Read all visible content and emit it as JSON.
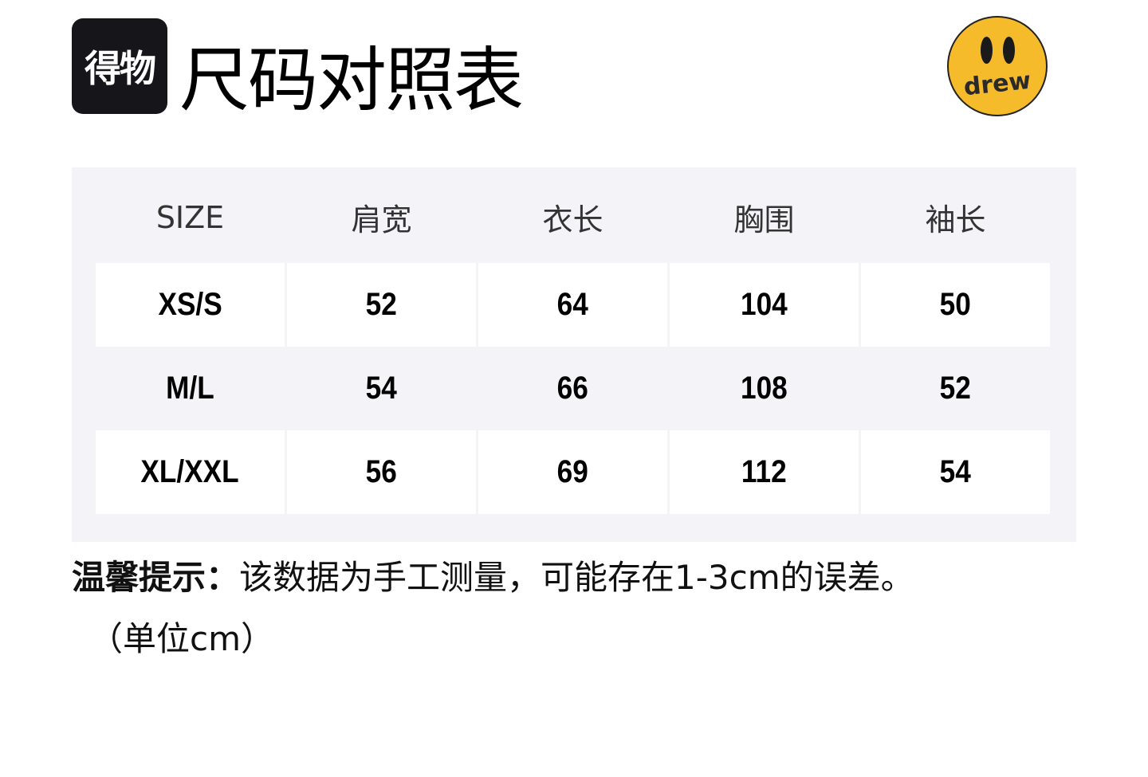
{
  "brand_logo": {
    "text": "得物"
  },
  "title": "尺码对照表",
  "partner_logo": {
    "text": "drew",
    "color": "#f6bb2b"
  },
  "table": {
    "headers": [
      "SIZE",
      "肩宽",
      "衣长",
      "胸围",
      "袖长"
    ],
    "rows": [
      [
        "XS/S",
        "52",
        "64",
        "104",
        "50"
      ],
      [
        "M/L",
        "54",
        "66",
        "108",
        "52"
      ],
      [
        "XL/XXL",
        "56",
        "69",
        "112",
        "54"
      ]
    ]
  },
  "note": {
    "label": "温馨提示：",
    "text": "该数据为手工测量，可能存在1-3cm的误差。",
    "unit": "（单位cm）"
  }
}
